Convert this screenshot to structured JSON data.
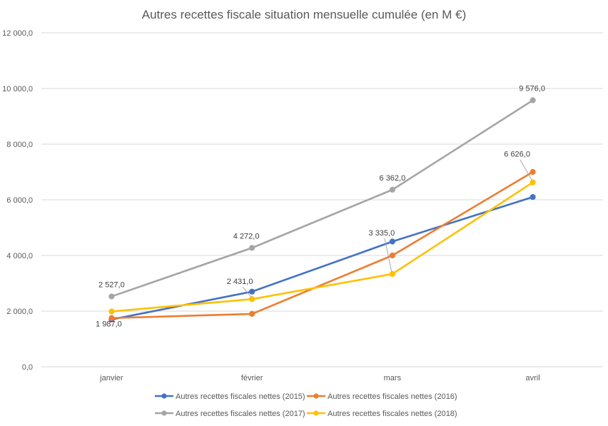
{
  "chart_data": {
    "type": "line",
    "title": "Autres recettes fiscale situation mensuelle cumulée (en M €)",
    "xlabel": "",
    "ylabel": "",
    "categories": [
      "janvier",
      "février",
      "mars",
      "avril"
    ],
    "ylim": [
      0,
      12000
    ],
    "yticks": [
      0,
      2000,
      4000,
      6000,
      8000,
      10000,
      12000
    ],
    "ytick_labels": [
      "0,0",
      "2 000,0",
      "4 000,0",
      "6 000,0",
      "8 000,0",
      "10 000,0",
      "12 000,0"
    ],
    "grid": "horizontal",
    "legend_position": "bottom",
    "series": [
      {
        "name": "Autres recettes fiscales nettes (2015)",
        "color": "#4472C4",
        "values": [
          1700,
          2700,
          4500,
          6100
        ]
      },
      {
        "name": "Autres recettes fiscales nettes (2016)",
        "color": "#ED7D31",
        "values": [
          1750,
          1900,
          4000,
          7000
        ]
      },
      {
        "name": "Autres recettes fiscales nettes (2017)",
        "color": "#A5A5A5",
        "values": [
          2527,
          4272,
          6362,
          9576
        ]
      },
      {
        "name": "Autres recettes fiscales nettes (2018)",
        "color": "#FFC000",
        "values": [
          1987,
          2431,
          3335,
          6626
        ]
      }
    ],
    "data_labels": [
      {
        "series": 2,
        "index": 0,
        "text": "2 527,0"
      },
      {
        "series": 2,
        "index": 1,
        "text": "4 272,0"
      },
      {
        "series": 2,
        "index": 2,
        "text": "6 362,0"
      },
      {
        "series": 2,
        "index": 3,
        "text": "9 576,0"
      },
      {
        "series": 3,
        "index": 0,
        "text": "1 987,0"
      },
      {
        "series": 3,
        "index": 1,
        "text": "2 431,0"
      },
      {
        "series": 3,
        "index": 2,
        "text": "3 335,0"
      },
      {
        "series": 3,
        "index": 3,
        "text": "6 626,0"
      }
    ]
  }
}
